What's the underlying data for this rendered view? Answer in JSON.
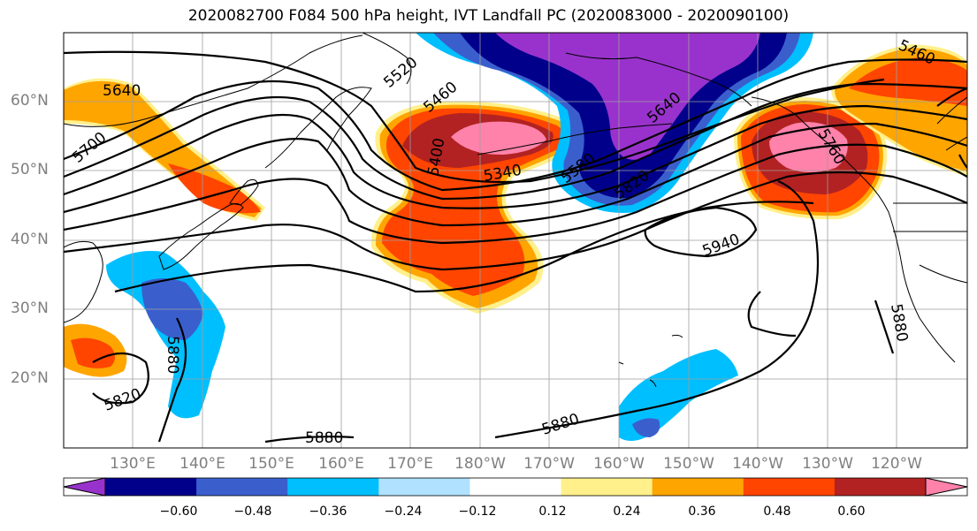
{
  "title": "2020082700 F084 500 hPa height, IVT Landfall PC (2020083000 - 2020090100)",
  "lat_labels": [
    "60°N",
    "50°N",
    "40°N",
    "30°N",
    "20°N"
  ],
  "lon_labels": [
    "130°E",
    "140°E",
    "150°E",
    "160°E",
    "170°E",
    "180°W",
    "170°W",
    "160°W",
    "150°W",
    "140°W",
    "130°W",
    "120°W"
  ],
  "colorbar": {
    "colors": [
      "#9932cc",
      "#00008b",
      "#3a5fcd",
      "#00bfff",
      "#b0e2ff",
      "#ffffff",
      "#fff08c",
      "#ffa500",
      "#ff4500",
      "#b22222",
      "#ff82ab"
    ],
    "ticks": [
      "−0.60",
      "−0.48",
      "−0.36",
      "−0.24",
      "−0.12",
      "0.12",
      "0.24",
      "0.36",
      "0.48",
      "0.60"
    ]
  },
  "contour_labels": [
    "5640",
    "5700",
    "5520",
    "5460",
    "5400",
    "5340",
    "5580",
    "5820",
    "5940",
    "5880",
    "5820",
    "5880",
    "5880",
    "5880",
    "5460",
    "5640",
    "5760"
  ]
}
